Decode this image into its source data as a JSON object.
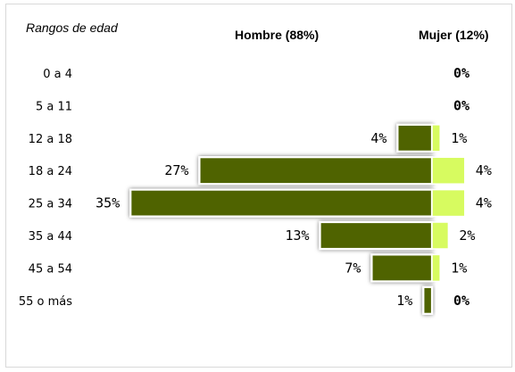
{
  "chart_data": {
    "type": "bar",
    "orientation": "horizontal",
    "layout": "population-pyramid",
    "axis_title": "Rangos de edad",
    "categories": [
      "0 a 4",
      "5 a 11",
      "12 a 18",
      "18 a 24",
      "25 a 34",
      "35 a 44",
      "45 a 54",
      "55 o más"
    ],
    "series": [
      {
        "name": "Hombre (88%)",
        "values": [
          0,
          0,
          4,
          27,
          35,
          13,
          7,
          1
        ],
        "labels": [
          "",
          "",
          "4%",
          "27%",
          "35%",
          "13%",
          "7%",
          "1%"
        ],
        "color": "#4f6300",
        "side": "left"
      },
      {
        "name": "Mujer (12%)",
        "values": [
          0,
          0,
          1,
          4,
          4,
          2,
          1,
          0
        ],
        "labels": [
          "0%",
          "0%",
          "1%",
          "4%",
          "4%",
          "2%",
          "1%",
          "0%"
        ],
        "color": "#d7fb60",
        "side": "right"
      }
    ],
    "legend": "top",
    "grid": false,
    "unit": "%"
  }
}
